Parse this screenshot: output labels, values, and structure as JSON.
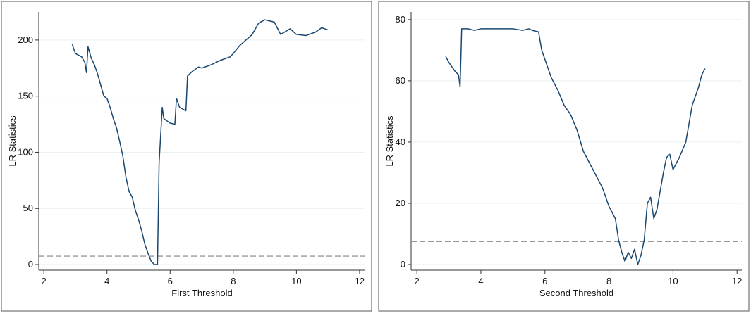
{
  "chart_data": [
    {
      "type": "line",
      "ylabel": "LR Statistics",
      "xlabel": "First Threshold",
      "color": "#1a476f",
      "hline": 7.5,
      "hline_color": "#999999",
      "grid": true,
      "xlim": [
        1.84,
        12.18
      ],
      "ylim": [
        -5,
        225
      ],
      "xticks": [
        2,
        4,
        6,
        8,
        10,
        12
      ],
      "yticks": [
        0,
        50,
        100,
        150,
        200
      ],
      "x": [
        2.9,
        3.0,
        3.2,
        3.3,
        3.35,
        3.4,
        3.5,
        3.6,
        3.7,
        3.8,
        3.9,
        4.0,
        4.1,
        4.2,
        4.3,
        4.4,
        4.5,
        4.6,
        4.7,
        4.8,
        4.9,
        5.0,
        5.1,
        5.2,
        5.3,
        5.4,
        5.5,
        5.6,
        5.65,
        5.75,
        5.8,
        6.0,
        6.15,
        6.2,
        6.3,
        6.5,
        6.55,
        6.7,
        6.9,
        7.0,
        7.3,
        7.6,
        7.9,
        8.0,
        8.2,
        8.4,
        8.6,
        8.8,
        9.0,
        9.3,
        9.5,
        9.8,
        10.0,
        10.3,
        10.6,
        10.8,
        11.0
      ],
      "values": [
        196,
        188,
        185,
        180,
        171,
        194,
        184,
        178,
        170,
        160,
        150,
        148,
        140,
        130,
        122,
        110,
        97,
        78,
        65,
        60,
        48,
        40,
        30,
        18,
        10,
        3,
        0,
        0,
        90,
        140,
        130,
        126,
        125,
        148,
        140,
        137,
        168,
        172,
        176,
        175,
        178,
        182,
        185,
        188,
        195,
        200,
        205,
        215,
        218,
        216,
        205,
        210,
        205,
        204,
        207,
        211,
        209
      ]
    },
    {
      "type": "line",
      "ylabel": "LR Statistics",
      "xlabel": "Second Threshold",
      "color": "#1a476f",
      "hline": 7.5,
      "hline_color": "#999999",
      "grid": true,
      "xlim": [
        1.82,
        12.15
      ],
      "ylim": [
        -1.84,
        82.5
      ],
      "xticks": [
        2,
        4,
        6,
        8,
        10,
        12
      ],
      "yticks": [
        0,
        20,
        40,
        60,
        80
      ],
      "x": [
        2.9,
        3.0,
        3.2,
        3.3,
        3.35,
        3.4,
        3.6,
        3.8,
        4.0,
        4.5,
        5.0,
        5.3,
        5.5,
        5.6,
        5.8,
        5.9,
        6.0,
        6.2,
        6.4,
        6.6,
        6.8,
        7.0,
        7.2,
        7.4,
        7.6,
        7.8,
        8.0,
        8.2,
        8.3,
        8.4,
        8.5,
        8.6,
        8.7,
        8.8,
        8.9,
        9.0,
        9.1,
        9.2,
        9.3,
        9.4,
        9.5,
        9.6,
        9.7,
        9.8,
        9.9,
        10.0,
        10.2,
        10.4,
        10.6,
        10.8,
        10.9,
        11.0
      ],
      "values": [
        68,
        66,
        63,
        62,
        58,
        77,
        77,
        76.5,
        77,
        77,
        77,
        76.5,
        77,
        76.5,
        76,
        70,
        67,
        61,
        57,
        52,
        49,
        44,
        37,
        33,
        29,
        25,
        19,
        15,
        8,
        4,
        1,
        4,
        2,
        5,
        0,
        3,
        8,
        20,
        22,
        15,
        18,
        24,
        30,
        35,
        36,
        31,
        35,
        40,
        52,
        58,
        62,
        64
      ]
    }
  ]
}
